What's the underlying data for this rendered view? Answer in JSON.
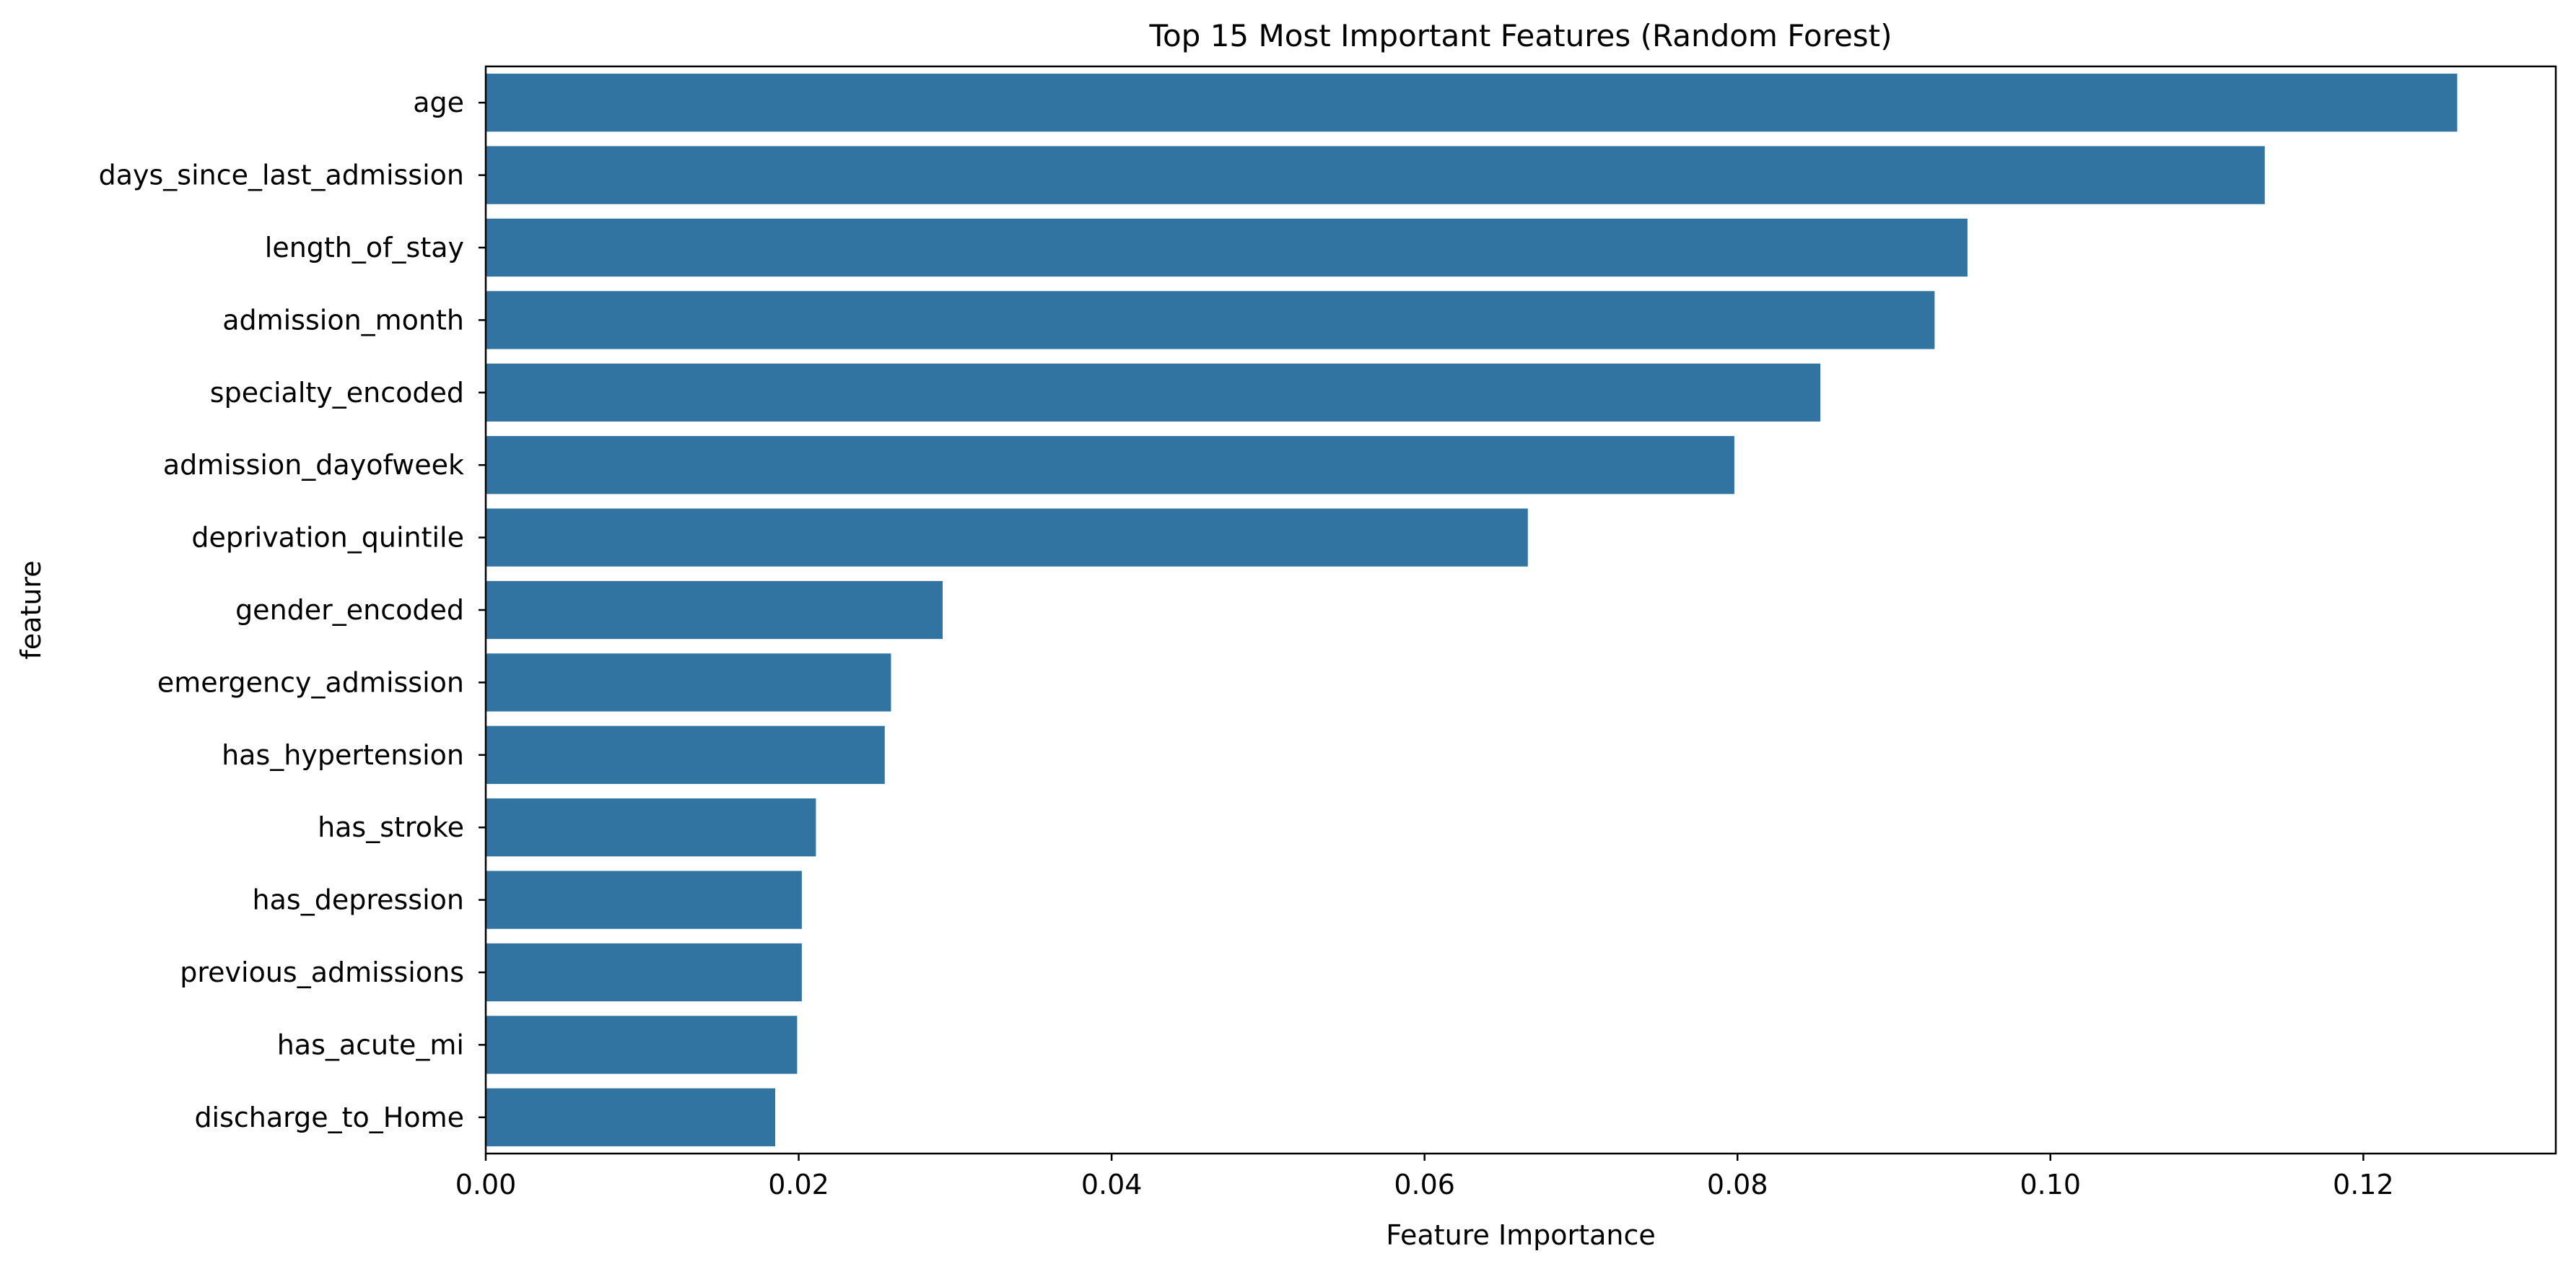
{
  "chart_data": {
    "type": "bar",
    "orientation": "horizontal",
    "title": "Top 15 Most Important Features (Random Forest)",
    "xlabel": "Feature Importance",
    "ylabel": "feature",
    "xlim": [
      0,
      0.1323
    ],
    "xticks": [
      "0.00",
      "0.02",
      "0.04",
      "0.06",
      "0.08",
      "0.10",
      "0.12"
    ],
    "xtick_values": [
      0,
      0.02,
      0.04,
      0.06,
      0.08,
      0.1,
      0.12
    ],
    "grid": false,
    "bar_color": "#3274a1",
    "categories": [
      "age",
      "days_since_last_admission",
      "length_of_stay",
      "admission_month",
      "specialty_encoded",
      "admission_dayofweek",
      "deprivation_quintile",
      "gender_encoded",
      "emergency_admission",
      "has_hypertension",
      "has_stroke",
      "has_depression",
      "previous_admissions",
      "has_acute_mi",
      "discharge_to_Home"
    ],
    "values": [
      0.126,
      0.1137,
      0.0947,
      0.0926,
      0.0853,
      0.0798,
      0.0666,
      0.0292,
      0.0259,
      0.0255,
      0.0211,
      0.0202,
      0.0202,
      0.0199,
      0.0185
    ]
  }
}
